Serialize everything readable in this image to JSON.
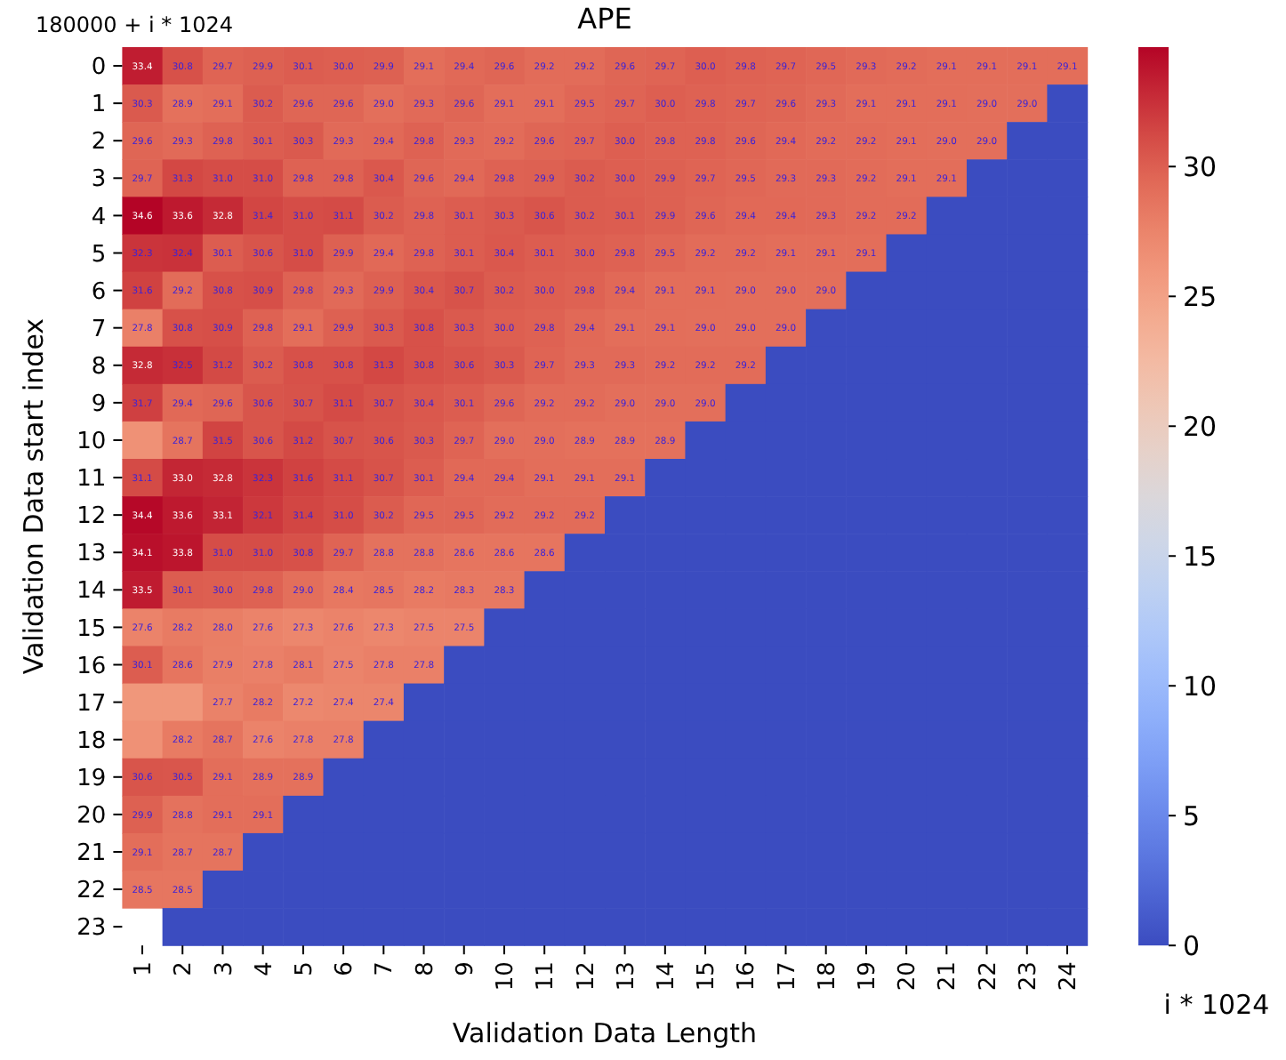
{
  "chart_data": {
    "type": "heatmap",
    "title": "APE",
    "xlabel": "Validation Data Length",
    "ylabel": "Validation Data start index",
    "annotations": [
      "180000 + i * 1024",
      "i * 1024"
    ],
    "categories": [
      "1",
      "2",
      "3",
      "4",
      "5",
      "6",
      "7",
      "8",
      "9",
      "10",
      "11",
      "12",
      "13",
      "14",
      "15",
      "16",
      "17",
      "18",
      "19",
      "20",
      "21",
      "22",
      "23",
      "24"
    ],
    "y_categories": [
      "0",
      "1",
      "2",
      "3",
      "4",
      "5",
      "6",
      "7",
      "8",
      "9",
      "10",
      "11",
      "12",
      "13",
      "14",
      "15",
      "16",
      "17",
      "18",
      "19",
      "20",
      "21",
      "22",
      "23"
    ],
    "clim": [
      0,
      34.6
    ],
    "cticks": [
      0,
      5,
      10,
      15,
      20,
      25,
      30
    ],
    "cells": [
      [
        33.4,
        30.8,
        29.7,
        29.9,
        30.1,
        30.0,
        29.9,
        29.1,
        29.4,
        29.6,
        29.2,
        29.2,
        29.6,
        29.7,
        30.0,
        29.8,
        29.7,
        29.5,
        29.3,
        29.2,
        29.1,
        29.1,
        29.1,
        29.1
      ],
      [
        30.3,
        28.9,
        29.1,
        30.2,
        29.6,
        29.6,
        29.0,
        29.3,
        29.6,
        29.1,
        29.1,
        29.5,
        29.7,
        30.0,
        29.8,
        29.7,
        29.6,
        29.3,
        29.1,
        29.1,
        29.1,
        29.0,
        29.0,
        0
      ],
      [
        29.6,
        29.3,
        29.8,
        30.1,
        30.3,
        29.3,
        29.4,
        29.8,
        29.3,
        29.2,
        29.6,
        29.7,
        30.0,
        29.8,
        29.8,
        29.6,
        29.4,
        29.2,
        29.2,
        29.1,
        29.0,
        29.0,
        0,
        0
      ],
      [
        29.7,
        31.3,
        31.0,
        31.0,
        29.8,
        29.8,
        30.4,
        29.6,
        29.4,
        29.8,
        29.9,
        30.2,
        30.0,
        29.9,
        29.7,
        29.5,
        29.3,
        29.3,
        29.2,
        29.1,
        29.1,
        0,
        0,
        0
      ],
      [
        34.6,
        33.6,
        32.8,
        31.4,
        31.0,
        31.1,
        30.2,
        29.8,
        30.1,
        30.3,
        30.6,
        30.2,
        30.1,
        29.9,
        29.6,
        29.4,
        29.4,
        29.3,
        29.2,
        29.2,
        0,
        0,
        0,
        0
      ],
      [
        32.3,
        32.4,
        30.1,
        30.6,
        31.0,
        29.9,
        29.4,
        29.8,
        30.1,
        30.4,
        30.1,
        30.0,
        29.8,
        29.5,
        29.2,
        29.2,
        29.1,
        29.1,
        29.1,
        0,
        0,
        0,
        0,
        0
      ],
      [
        31.6,
        29.2,
        30.8,
        30.9,
        29.8,
        29.3,
        29.9,
        30.4,
        30.7,
        30.2,
        30.0,
        29.8,
        29.4,
        29.1,
        29.1,
        29.0,
        29.0,
        29.0,
        0,
        0,
        0,
        0,
        0,
        0
      ],
      [
        27.8,
        30.8,
        30.9,
        29.8,
        29.1,
        29.9,
        30.3,
        30.8,
        30.3,
        30.0,
        29.8,
        29.4,
        29.1,
        29.1,
        29.0,
        29.0,
        29.0,
        0,
        0,
        0,
        0,
        0,
        0,
        0
      ],
      [
        32.8,
        32.5,
        31.2,
        30.2,
        30.8,
        30.8,
        31.3,
        30.8,
        30.6,
        30.3,
        29.7,
        29.3,
        29.3,
        29.2,
        29.2,
        29.2,
        0,
        0,
        0,
        0,
        0,
        0,
        0,
        0
      ],
      [
        31.7,
        29.4,
        29.6,
        30.6,
        30.7,
        31.1,
        30.7,
        30.4,
        30.1,
        29.6,
        29.2,
        29.2,
        29.0,
        29.0,
        29.0,
        0,
        0,
        0,
        0,
        0,
        0,
        0,
        0,
        0
      ],
      [
        26.5,
        28.7,
        31.5,
        30.6,
        31.2,
        30.7,
        30.6,
        30.3,
        29.7,
        29.0,
        29.0,
        28.9,
        28.9,
        28.9,
        0,
        0,
        0,
        0,
        0,
        0,
        0,
        0,
        0,
        0
      ],
      [
        31.1,
        33.0,
        32.8,
        32.3,
        31.6,
        31.1,
        30.7,
        30.1,
        29.4,
        29.4,
        29.1,
        29.1,
        29.1,
        0,
        0,
        0,
        0,
        0,
        0,
        0,
        0,
        0,
        0,
        0
      ],
      [
        34.4,
        33.6,
        33.1,
        32.1,
        31.4,
        31.0,
        30.2,
        29.5,
        29.5,
        29.2,
        29.2,
        29.2,
        0,
        0,
        0,
        0,
        0,
        0,
        0,
        0,
        0,
        0,
        0,
        0
      ],
      [
        34.1,
        33.8,
        31.0,
        31.0,
        30.8,
        29.7,
        28.8,
        28.8,
        28.6,
        28.6,
        28.6,
        0,
        0,
        0,
        0,
        0,
        0,
        0,
        0,
        0,
        0,
        0,
        0,
        0
      ],
      [
        33.5,
        30.1,
        30.0,
        29.8,
        29.0,
        28.4,
        28.5,
        28.2,
        28.3,
        28.3,
        0,
        0,
        0,
        0,
        0,
        0,
        0,
        0,
        0,
        0,
        0,
        0,
        0,
        0
      ],
      [
        27.6,
        28.2,
        28.0,
        27.6,
        27.3,
        27.6,
        27.3,
        27.5,
        27.5,
        0,
        0,
        0,
        0,
        0,
        0,
        0,
        0,
        0,
        0,
        0,
        0,
        0,
        0,
        0
      ],
      [
        30.1,
        28.6,
        27.9,
        27.8,
        28.1,
        27.5,
        27.8,
        27.8,
        0,
        0,
        0,
        0,
        0,
        0,
        0,
        0,
        0,
        0,
        0,
        0,
        0,
        0,
        0,
        0
      ],
      [
        26.0,
        26.0,
        27.7,
        28.2,
        27.2,
        27.4,
        27.4,
        0,
        0,
        0,
        0,
        0,
        0,
        0,
        0,
        0,
        0,
        0,
        0,
        0,
        0,
        0,
        0,
        0
      ],
      [
        26.5,
        28.2,
        28.7,
        27.6,
        27.8,
        27.8,
        0,
        0,
        0,
        0,
        0,
        0,
        0,
        0,
        0,
        0,
        0,
        0,
        0,
        0,
        0,
        0,
        0,
        0
      ],
      [
        30.6,
        30.5,
        29.1,
        28.9,
        28.9,
        0,
        0,
        0,
        0,
        0,
        0,
        0,
        0,
        0,
        0,
        0,
        0,
        0,
        0,
        0,
        0,
        0,
        0,
        0
      ],
      [
        29.9,
        28.8,
        29.1,
        29.1,
        0,
        0,
        0,
        0,
        0,
        0,
        0,
        0,
        0,
        0,
        0,
        0,
        0,
        0,
        0,
        0,
        0,
        0,
        0,
        0
      ],
      [
        29.1,
        28.7,
        28.7,
        0,
        0,
        0,
        0,
        0,
        0,
        0,
        0,
        0,
        0,
        0,
        0,
        0,
        0,
        0,
        0,
        0,
        0,
        0,
        0,
        0
      ],
      [
        28.5,
        28.5,
        0,
        0,
        0,
        0,
        0,
        0,
        0,
        0,
        0,
        0,
        0,
        0,
        0,
        0,
        0,
        0,
        0,
        0,
        0,
        0,
        0,
        0
      ],
      [
        null,
        0,
        0,
        0,
        0,
        0,
        0,
        0,
        0,
        0,
        0,
        0,
        0,
        0,
        0,
        0,
        0,
        0,
        0,
        0,
        0,
        0,
        0,
        0
      ]
    ],
    "cell_labels": [
      [
        "33.4",
        "30.8",
        "29.7",
        "29.9",
        "30.1",
        "30.0",
        "29.9",
        "29.1",
        "29.4",
        "29.6",
        "29.2",
        "29.2",
        "29.6",
        "29.7",
        "30.0",
        "29.8",
        "29.7",
        "29.5",
        "29.3",
        "29.2",
        "29.1",
        "29.1",
        "29.1",
        "29.1"
      ],
      [
        "30.3",
        "28.9",
        "29.1",
        "30.2",
        "29.6",
        "29.6",
        "29.0",
        "29.3",
        "29.6",
        "29.1",
        "29.1",
        "29.5",
        "29.7",
        "30.0",
        "29.8",
        "29.7",
        "29.6",
        "29.3",
        "29.1",
        "29.1",
        "29.1",
        "29.0",
        "29.0",
        null
      ],
      [
        "29.6",
        "29.3",
        "29.8",
        "30.1",
        "30.3",
        "29.3",
        "29.4",
        "29.8",
        "29.3",
        "29.2",
        "29.6",
        "29.7",
        "30.0",
        "29.8",
        "29.8",
        "29.6",
        "29.4",
        "29.2",
        "29.2",
        "29.1",
        "29.0",
        "29.0",
        null,
        null
      ],
      [
        "29.7",
        "31.3",
        "31.0",
        "31.0",
        "29.8",
        "29.8",
        "30.4",
        "29.6",
        "29.4",
        "29.8",
        "29.9",
        "30.2",
        "30.0",
        "29.9",
        "29.7",
        "29.5",
        "29.3",
        "29.3",
        "29.2",
        "29.1",
        "29.1",
        null,
        null,
        null
      ],
      [
        "34.6",
        "33.6",
        "32.8",
        "31.4",
        "31.0",
        "31.1",
        "30.2",
        "29.8",
        "30.1",
        "30.3",
        "30.6",
        "30.2",
        "30.1",
        "29.9",
        "29.6",
        "29.4",
        "29.4",
        "29.3",
        "29.2",
        "29.2",
        null,
        null,
        null,
        null
      ],
      [
        "32.3",
        "32.4",
        "30.1",
        "30.6",
        "31.0",
        "29.9",
        "29.4",
        "29.8",
        "30.1",
        "30.4",
        "30.1",
        "30.0",
        "29.8",
        "29.5",
        "29.2",
        "29.2",
        "29.1",
        "29.1",
        "29.1",
        null,
        null,
        null,
        null,
        null
      ],
      [
        "31.6",
        "29.2",
        "30.8",
        "30.9",
        "29.8",
        "29.3",
        "29.9",
        "30.4",
        "30.7",
        "30.2",
        "30.0",
        "29.8",
        "29.4",
        "29.1",
        "29.1",
        "29.0",
        "29.0",
        "29.0",
        null,
        null,
        null,
        null,
        null,
        null
      ],
      [
        "27.8",
        "30.8",
        "30.9",
        "29.8",
        "29.1",
        "29.9",
        "30.3",
        "30.8",
        "30.3",
        "30.0",
        "29.8",
        "29.4",
        "29.1",
        "29.1",
        "29.0",
        "29.0",
        "29.0",
        null,
        null,
        null,
        null,
        null,
        null,
        null
      ],
      [
        "32.8",
        "32.5",
        "31.2",
        "30.2",
        "30.8",
        "30.8",
        "31.3",
        "30.8",
        "30.6",
        "30.3",
        "29.7",
        "29.3",
        "29.3",
        "29.2",
        "29.2",
        "29.2",
        null,
        null,
        null,
        null,
        null,
        null,
        null,
        null
      ],
      [
        "31.7",
        "29.4",
        "29.6",
        "30.6",
        "30.7",
        "31.1",
        "30.7",
        "30.4",
        "30.1",
        "29.6",
        "29.2",
        "29.2",
        "29.0",
        "29.0",
        "29.0",
        null,
        null,
        null,
        null,
        null,
        null,
        null,
        null,
        null
      ],
      [
        null,
        "28.7",
        "31.5",
        "30.6",
        "31.2",
        "30.7",
        "30.6",
        "30.3",
        "29.7",
        "29.0",
        "29.0",
        "28.9",
        "28.9",
        "28.9",
        null,
        null,
        null,
        null,
        null,
        null,
        null,
        null,
        null,
        null
      ],
      [
        "31.1",
        "33.0",
        "32.8",
        "32.3",
        "31.6",
        "31.1",
        "30.7",
        "30.1",
        "29.4",
        "29.4",
        "29.1",
        "29.1",
        "29.1",
        null,
        null,
        null,
        null,
        null,
        null,
        null,
        null,
        null,
        null,
        null
      ],
      [
        "34.4",
        "33.6",
        "33.1",
        "32.1",
        "31.4",
        "31.0",
        "30.2",
        "29.5",
        "29.5",
        "29.2",
        "29.2",
        "29.2",
        null,
        null,
        null,
        null,
        null,
        null,
        null,
        null,
        null,
        null,
        null,
        null
      ],
      [
        "34.1",
        "33.8",
        "31.0",
        "31.0",
        "30.8",
        "29.7",
        "28.8",
        "28.8",
        "28.6",
        "28.6",
        "28.6",
        null,
        null,
        null,
        null,
        null,
        null,
        null,
        null,
        null,
        null,
        null,
        null,
        null
      ],
      [
        "33.5",
        "30.1",
        "30.0",
        "29.8",
        "29.0",
        "28.4",
        "28.5",
        "28.2",
        "28.3",
        "28.3",
        null,
        null,
        null,
        null,
        null,
        null,
        null,
        null,
        null,
        null,
        null,
        null,
        null,
        null
      ],
      [
        "27.6",
        "28.2",
        "28.0",
        "27.6",
        "27.3",
        "27.6",
        "27.3",
        "27.5",
        "27.5",
        null,
        null,
        null,
        null,
        null,
        null,
        null,
        null,
        null,
        null,
        null,
        null,
        null,
        null,
        null
      ],
      [
        "30.1",
        "28.6",
        "27.9",
        "27.8",
        "28.1",
        "27.5",
        "27.8",
        "27.8",
        null,
        null,
        null,
        null,
        null,
        null,
        null,
        null,
        null,
        null,
        null,
        null,
        null,
        null,
        null,
        null
      ],
      [
        null,
        null,
        "27.7",
        "28.2",
        "27.2",
        "27.4",
        "27.4",
        null,
        null,
        null,
        null,
        null,
        null,
        null,
        null,
        null,
        null,
        null,
        null,
        null,
        null,
        null,
        null,
        null
      ],
      [
        null,
        "28.2",
        "28.7",
        "27.6",
        "27.8",
        "27.8",
        null,
        null,
        null,
        null,
        null,
        null,
        null,
        null,
        null,
        null,
        null,
        null,
        null,
        null,
        null,
        null,
        null,
        null
      ],
      [
        "30.6",
        "30.5",
        "29.1",
        "28.9",
        "28.9",
        null,
        null,
        null,
        null,
        null,
        null,
        null,
        null,
        null,
        null,
        null,
        null,
        null,
        null,
        null,
        null,
        null,
        null,
        null
      ],
      [
        "29.9",
        "28.8",
        "29.1",
        "29.1",
        null,
        null,
        null,
        null,
        null,
        null,
        null,
        null,
        null,
        null,
        null,
        null,
        null,
        null,
        null,
        null,
        null,
        null,
        null,
        null
      ],
      [
        "29.1",
        "28.7",
        "28.7",
        null,
        null,
        null,
        null,
        null,
        null,
        null,
        null,
        null,
        null,
        null,
        null,
        null,
        null,
        null,
        null,
        null,
        null,
        null,
        null,
        null
      ],
      [
        "28.5",
        "28.5",
        null,
        null,
        null,
        null,
        null,
        null,
        null,
        null,
        null,
        null,
        null,
        null,
        null,
        null,
        null,
        null,
        null,
        null,
        null,
        null,
        null,
        null
      ],
      [
        null,
        null,
        null,
        null,
        null,
        null,
        null,
        null,
        null,
        null,
        null,
        null,
        null,
        null,
        null,
        null,
        null,
        null,
        null,
        null,
        null,
        null,
        null,
        null
      ]
    ]
  }
}
